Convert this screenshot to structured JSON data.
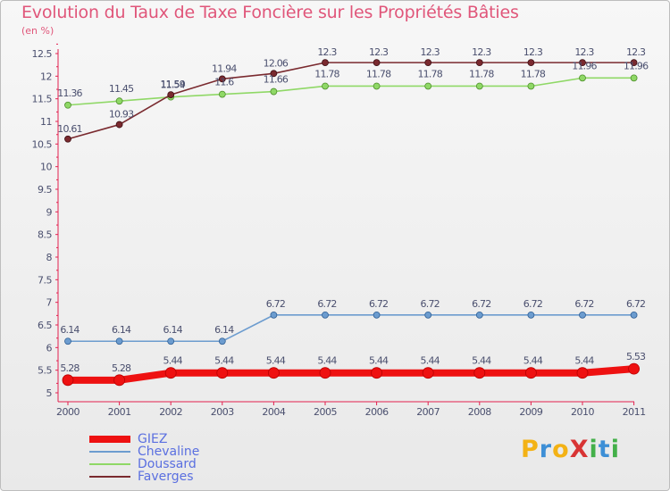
{
  "title": "Evolution du Taux de Taxe Foncière sur les Propriétés Bâties",
  "subtitle": "(en %)",
  "colors": {
    "title": "#e0567a",
    "axis": "#e3204f",
    "label": "#4a4f6e",
    "legend_text": "#5a6fe0"
  },
  "brand": {
    "text": "ProXiti",
    "letters": [
      {
        "char": "P",
        "color": "#f3b215"
      },
      {
        "char": "r",
        "color": "#3d8fd6"
      },
      {
        "char": "o",
        "color": "#f3b215"
      },
      {
        "char": "X",
        "color": "#d83434"
      },
      {
        "char": "i",
        "color": "#43b049"
      },
      {
        "char": "t",
        "color": "#3d8fd6"
      },
      {
        "char": "i",
        "color": "#43b049"
      }
    ]
  },
  "chart_data": {
    "type": "line",
    "title": "Evolution du Taux de Taxe Foncière sur les Propriétés Bâties",
    "ylabel": "(en %)",
    "xlabel": "",
    "x": [
      "2000",
      "2001",
      "2002",
      "2003",
      "2004",
      "2005",
      "2006",
      "2007",
      "2008",
      "2009",
      "2010",
      "2011"
    ],
    "ylim": [
      5,
      12.5
    ],
    "yticks": [
      "5",
      "5.5",
      "6",
      "6.5",
      "7",
      "7.5",
      "8",
      "8.5",
      "9",
      "9.5",
      "10",
      "10.5",
      "11",
      "11.5",
      "12",
      "12.5"
    ],
    "grid": false,
    "legend_position": "bottom-left",
    "series": [
      {
        "name": "GIEZ",
        "color": "#ee1111",
        "values": [
          5.28,
          5.28,
          5.44,
          5.44,
          5.44,
          5.44,
          5.44,
          5.44,
          5.44,
          5.44,
          5.44,
          5.53
        ],
        "labels": [
          "5.28",
          "5.28",
          "5.44",
          "5.44",
          "5.44",
          "5.44",
          "5.44",
          "5.44",
          "5.44",
          "5.44",
          "5.44",
          "5.53"
        ]
      },
      {
        "name": "Chevaline",
        "color": "#6c9ccf",
        "values": [
          6.14,
          6.14,
          6.14,
          6.14,
          6.72,
          6.72,
          6.72,
          6.72,
          6.72,
          6.72,
          6.72,
          6.72
        ],
        "labels": [
          "6.14",
          "6.14",
          "6.14",
          "6.14",
          "6.72",
          "6.72",
          "6.72",
          "6.72",
          "6.72",
          "6.72",
          "6.72",
          "6.72"
        ]
      },
      {
        "name": "Doussard",
        "color": "#8fd866",
        "values": [
          11.36,
          11.45,
          11.54,
          11.6,
          11.66,
          11.78,
          11.78,
          11.78,
          11.78,
          11.78,
          11.96,
          11.96
        ],
        "labels": [
          "11.36",
          "11.45",
          "11.54",
          "11.6",
          "11.66",
          "11.78",
          "11.78",
          "11.78",
          "11.78",
          "11.78",
          "11.96",
          "11.96"
        ]
      },
      {
        "name": "Faverges",
        "color": "#7a2a2f",
        "values": [
          10.61,
          10.93,
          11.59,
          11.94,
          12.06,
          12.3,
          12.3,
          12.3,
          12.3,
          12.3,
          12.3,
          12.3
        ],
        "labels": [
          "10.61",
          "10.93",
          "11.59",
          "11.94",
          "12.06",
          "12.3",
          "12.3",
          "12.3",
          "12.3",
          "12.3",
          "12.3",
          "12.3"
        ]
      }
    ]
  }
}
